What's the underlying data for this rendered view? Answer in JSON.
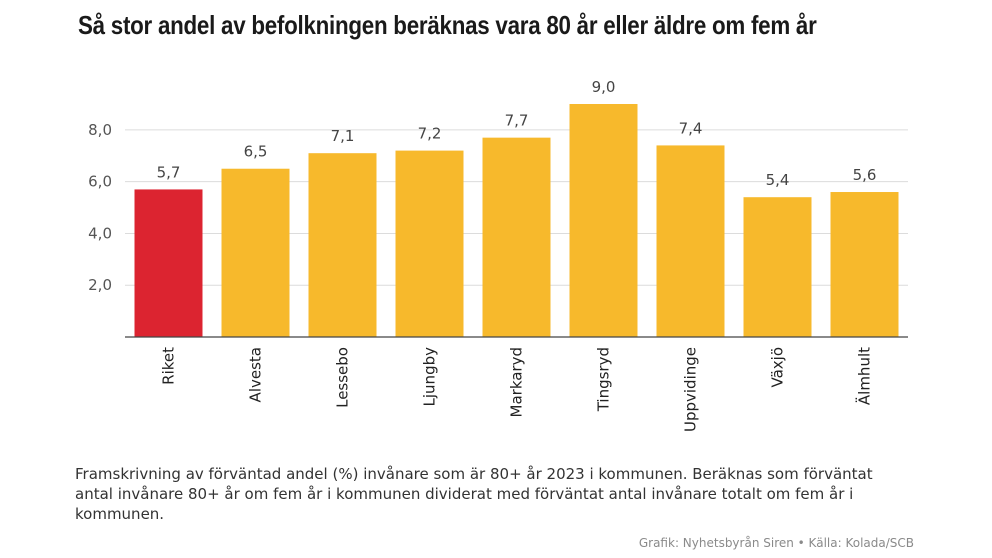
{
  "title": "Så stor andel av befolkningen beräknas vara 80 år eller äldre om fem år",
  "note": "Framskrivning av förväntad andel (%) invånare som är 80+ år 2023 i kommunen. Beräknas som förväntat antal invånare 80+ år om fem år i kommunen dividerat med förväntat antal invånare totalt om fem år i kommunen.",
  "source": "Grafik: Nyhetsbyrån Siren • Källa: Kolada/SCB",
  "colors": {
    "highlight": "#dc2430",
    "bar": "#f7b92c",
    "grid": "#dcdcdc",
    "axis": "#444444"
  },
  "chart_data": {
    "type": "bar",
    "categories": [
      "Riket",
      "Alvesta",
      "Lessebo",
      "Ljungby",
      "Markaryd",
      "Tingsryd",
      "Uppvidinge",
      "Växjö",
      "Älmhult"
    ],
    "values": [
      5.7,
      6.5,
      7.1,
      7.2,
      7.7,
      9.0,
      7.4,
      5.4,
      5.6
    ],
    "value_labels": [
      "5,7",
      "6,5",
      "7,1",
      "7,2",
      "7,7",
      "9,0",
      "7,4",
      "5,4",
      "5,6"
    ],
    "highlight_index": 0,
    "yticks": [
      2.0,
      4.0,
      6.0,
      8.0
    ],
    "ytick_labels": [
      "2,0",
      "4,0",
      "6,0",
      "8,0"
    ],
    "ylim": [
      0,
      9.0
    ],
    "grid": true,
    "xlabel": "",
    "ylabel": ""
  }
}
